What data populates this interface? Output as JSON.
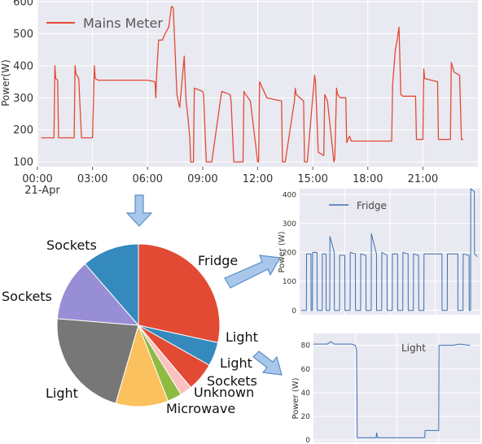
{
  "colors": {
    "mains": "#e24a33",
    "sub": "#3a6fb0",
    "panel_bg": "#e9e9f1",
    "grid": "#ffffff",
    "arrow_fill": "#a9c7ea",
    "arrow_stroke": "#5b8fc7"
  },
  "chart_data": [
    {
      "type": "line",
      "ylabel": "Power(W)",
      "xlabel": "",
      "ylim": [
        85,
        605
      ],
      "xlim": [
        0,
        24
      ],
      "y_ticks": [
        "100",
        "200",
        "300",
        "400",
        "500",
        "600"
      ],
      "y_tick_values": [
        100,
        200,
        300,
        400,
        500,
        600
      ],
      "x_ticks": [
        "00:00",
        "03:00",
        "06:00",
        "09:00",
        "12:00",
        "15:00",
        "18:00",
        "21:00"
      ],
      "x_tick_values": [
        0,
        3,
        6,
        9,
        12,
        15,
        18,
        21
      ],
      "x_subticks": [
        "21-Apr",
        "",
        "",
        "",
        "",
        "",
        "",
        ""
      ],
      "legend": {
        "label": "Mains Meter",
        "position": "upper-left"
      },
      "grid": true,
      "series": [
        {
          "name": "Mains Meter",
          "x": [
            0.2,
            0.9,
            0.95,
            1.0,
            1.1,
            1.15,
            2.0,
            2.05,
            2.1,
            2.25,
            2.4,
            3.0,
            3.1,
            3.15,
            3.3,
            6.0,
            6.4,
            6.45,
            6.5,
            6.6,
            6.8,
            7.0,
            7.15,
            7.3,
            7.4,
            7.6,
            7.7,
            7.75,
            8.0,
            8.05,
            8.1,
            8.2,
            8.3,
            8.35,
            8.5,
            8.55,
            9.0,
            9.05,
            9.1,
            9.2,
            9.5,
            10.0,
            10.05,
            10.5,
            10.55,
            10.7,
            11.2,
            11.25,
            11.35,
            11.6,
            12.0,
            12.05,
            12.1,
            12.5,
            13.3,
            13.35,
            13.5,
            14.0,
            14.05,
            14.1,
            14.5,
            14.55,
            14.7,
            15.1,
            15.15,
            15.3,
            15.6,
            15.65,
            15.8,
            16.1,
            16.15,
            16.2,
            16.3,
            16.35,
            16.5,
            16.8,
            16.85,
            17.0,
            17.1,
            17.2,
            19.3,
            19.35,
            19.5,
            19.6,
            19.7,
            19.8,
            19.9,
            20.6,
            20.65,
            20.8,
            21.0,
            21.05,
            21.1,
            21.8,
            21.85,
            22.0,
            22.5,
            22.55,
            22.7,
            23.0,
            23.1,
            23.2
          ],
          "values": [
            175,
            175,
            400,
            360,
            355,
            175,
            175,
            400,
            375,
            360,
            175,
            175,
            400,
            360,
            355,
            355,
            350,
            300,
            380,
            480,
            480,
            505,
            520,
            585,
            580,
            310,
            280,
            270,
            430,
            350,
            290,
            240,
            175,
            100,
            100,
            330,
            320,
            310,
            240,
            100,
            100,
            305,
            320,
            310,
            290,
            100,
            100,
            320,
            310,
            290,
            100,
            100,
            350,
            300,
            290,
            100,
            100,
            290,
            330,
            310,
            290,
            100,
            100,
            370,
            350,
            130,
            120,
            310,
            290,
            130,
            100,
            110,
            330,
            310,
            300,
            300,
            160,
            180,
            165,
            165,
            165,
            340,
            450,
            480,
            520,
            310,
            305,
            305,
            170,
            170,
            170,
            390,
            360,
            350,
            170,
            170,
            170,
            410,
            380,
            370,
            170,
            170
          ]
        }
      ]
    },
    {
      "type": "pie",
      "categories": [
        "Fridge",
        "Light",
        "Light",
        "Sockets",
        "Unknown",
        "Microwave",
        "Light",
        "Sockets",
        "Sockets"
      ],
      "values": [
        30,
        5,
        6,
        2.5,
        3,
        11,
        23,
        13,
        12
      ],
      "colors": [
        "#e24a33",
        "#348abd",
        "#e24a33",
        "#fbc1c1",
        "#8eba42",
        "#fbc15e",
        "#777777",
        "#988ed5",
        "#348abd"
      ]
    },
    {
      "type": "line",
      "ylabel": "Power (W)",
      "xlabel": "",
      "ylim": [
        -15,
        420
      ],
      "xlim": [
        0,
        24
      ],
      "y_ticks": [
        "0",
        "100",
        "200",
        "300",
        "400"
      ],
      "y_tick_values": [
        0,
        100,
        200,
        300,
        400
      ],
      "legend": {
        "label": "Fridge",
        "position": "upper-left"
      },
      "grid": true,
      "series": [
        {
          "name": "Fridge",
          "x": [
            0.2,
            0.9,
            0.92,
            1.5,
            1.52,
            1.7,
            1.72,
            2.3,
            2.32,
            3.0,
            3.02,
            3.5,
            3.52,
            4.0,
            4.02,
            4.6,
            4.62,
            5.3,
            5.32,
            6.0,
            6.02,
            6.7,
            6.72,
            7.4,
            7.42,
            8.1,
            8.12,
            8.8,
            8.82,
            9.5,
            9.52,
            10.2,
            10.22,
            10.9,
            10.92,
            11.6,
            11.62,
            12.3,
            12.32,
            13.0,
            13.02,
            13.7,
            13.72,
            14.4,
            14.42,
            15.1,
            15.12,
            15.8,
            15.82,
            16.5,
            16.52,
            18.9,
            18.92,
            19.6,
            19.62,
            21.0,
            21.02,
            21.7,
            21.72,
            22.5,
            22.52,
            22.7,
            22.72,
            23.2,
            23.22,
            23.6
          ],
          "values": [
            0,
            0,
            195,
            195,
            0,
            0,
            200,
            200,
            0,
            0,
            195,
            195,
            0,
            0,
            255,
            200,
            0,
            0,
            190,
            190,
            0,
            0,
            200,
            195,
            0,
            0,
            195,
            190,
            0,
            0,
            265,
            195,
            0,
            0,
            200,
            190,
            0,
            0,
            195,
            195,
            0,
            0,
            200,
            195,
            0,
            0,
            195,
            190,
            0,
            0,
            195,
            195,
            0,
            0,
            195,
            195,
            0,
            0,
            195,
            190,
            0,
            0,
            420,
            410,
            195,
            185
          ]
        }
      ]
    },
    {
      "type": "line",
      "ylabel": "Power (W)",
      "xlabel": "",
      "ylim": [
        -2,
        90
      ],
      "xlim": [
        0,
        24
      ],
      "y_ticks": [
        "0",
        "20",
        "40",
        "60",
        "80"
      ],
      "y_tick_values": [
        0,
        20,
        40,
        60,
        80
      ],
      "legend": {
        "label": "Light",
        "position": "upper-center"
      },
      "grid": true,
      "series": [
        {
          "name": "Light",
          "x": [
            0.0,
            2.0,
            2.5,
            3.0,
            5.5,
            6.0,
            6.2,
            6.3,
            7.0,
            9.0,
            9.1,
            9.2,
            11.0,
            12.0,
            15.5,
            16.0,
            16.05,
            18.0,
            18.05,
            20.0,
            21.0,
            22.5
          ],
          "values": [
            81,
            81,
            83,
            81,
            81,
            80,
            76,
            2,
            2,
            2,
            6,
            2,
            2,
            2,
            2,
            2,
            8,
            8,
            80,
            80,
            81,
            80
          ]
        }
      ]
    }
  ],
  "figure_labels": {
    "mains_legend": "Mains Meter",
    "fridge_legend": "Fridge",
    "light_legend": "Light",
    "mains_ylabel": "Power(W)",
    "fridge_ylabel": "Power (W)",
    "light_ylabel": "Power (W)",
    "date_label": "21-Apr",
    "pie_labels": [
      "Fridge",
      "Light",
      "Light",
      "Sockets",
      "Unknown",
      "Microwave",
      "Light",
      "Sockets",
      "Sockets"
    ]
  }
}
